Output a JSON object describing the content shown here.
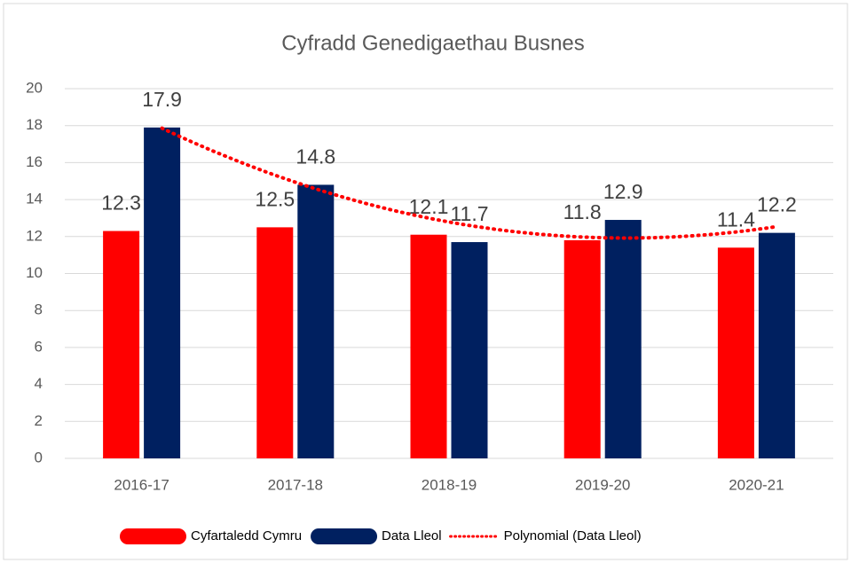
{
  "chart_data": {
    "type": "bar",
    "title": "Cyfradd Genedigaethau Busnes",
    "categories": [
      "2016-17",
      "2017-18",
      "2018-19",
      "2019-20",
      "2020-21"
    ],
    "series": [
      {
        "name": "Cyfartaledd Cymru",
        "color": "#ff0000",
        "values": [
          12.3,
          12.5,
          12.1,
          11.8,
          11.4
        ]
      },
      {
        "name": "Data Lleol",
        "color": "#002060",
        "values": [
          17.9,
          14.8,
          11.7,
          12.9,
          12.2
        ]
      }
    ],
    "trendline": {
      "name": "Polynomial (Data Lleol)",
      "series": 1,
      "order": 2,
      "color": "#ff0000"
    },
    "ylim": [
      0,
      20
    ],
    "yticks": [
      0,
      2,
      4,
      6,
      8,
      10,
      12,
      14,
      16,
      18,
      20
    ],
    "grid": true,
    "legend": "bottom"
  }
}
